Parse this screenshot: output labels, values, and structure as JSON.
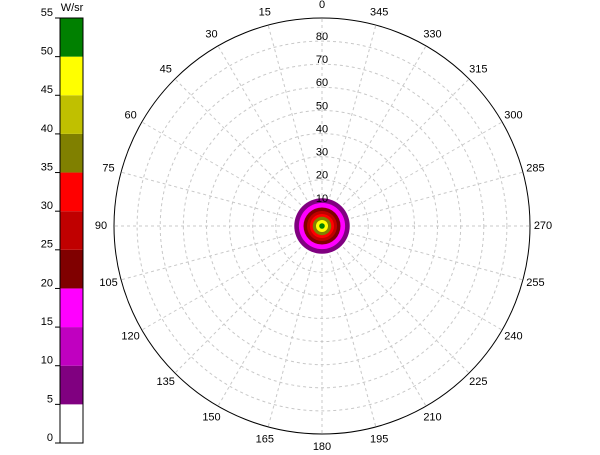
{
  "chart_data": {
    "type": "polar",
    "rlim": [
      0,
      90
    ],
    "rticks": [
      10,
      20,
      30,
      40,
      50,
      60,
      70,
      80
    ],
    "theta_ticks": [
      0,
      15,
      30,
      45,
      60,
      75,
      90,
      105,
      120,
      135,
      150,
      165,
      180,
      195,
      210,
      225,
      240,
      255,
      270,
      285,
      300,
      315,
      330,
      345
    ],
    "grid": true,
    "rings": [
      {
        "level": 5,
        "radius": 12
      },
      {
        "level": 15,
        "radius": 10
      },
      {
        "level": 20,
        "radius": 8
      },
      {
        "level": 25,
        "radius": 6.5
      },
      {
        "level": 30,
        "radius": 5.2
      },
      {
        "level": 35,
        "radius": 4
      },
      {
        "level": 45,
        "radius": 2.6
      },
      {
        "level": 50,
        "radius": 1.2
      }
    ],
    "colorbar": {
      "label": "W/sr",
      "lim": [
        0,
        55
      ],
      "ticks": [
        0,
        5,
        10,
        15,
        20,
        25,
        30,
        35,
        40,
        45,
        50,
        55
      ],
      "colors": [
        "#ffffff",
        "#800080",
        "#c000c0",
        "#ff00ff",
        "#800000",
        "#c00000",
        "#ff0000",
        "#808000",
        "#c0c000",
        "#ffff00",
        "#008000"
      ]
    }
  }
}
